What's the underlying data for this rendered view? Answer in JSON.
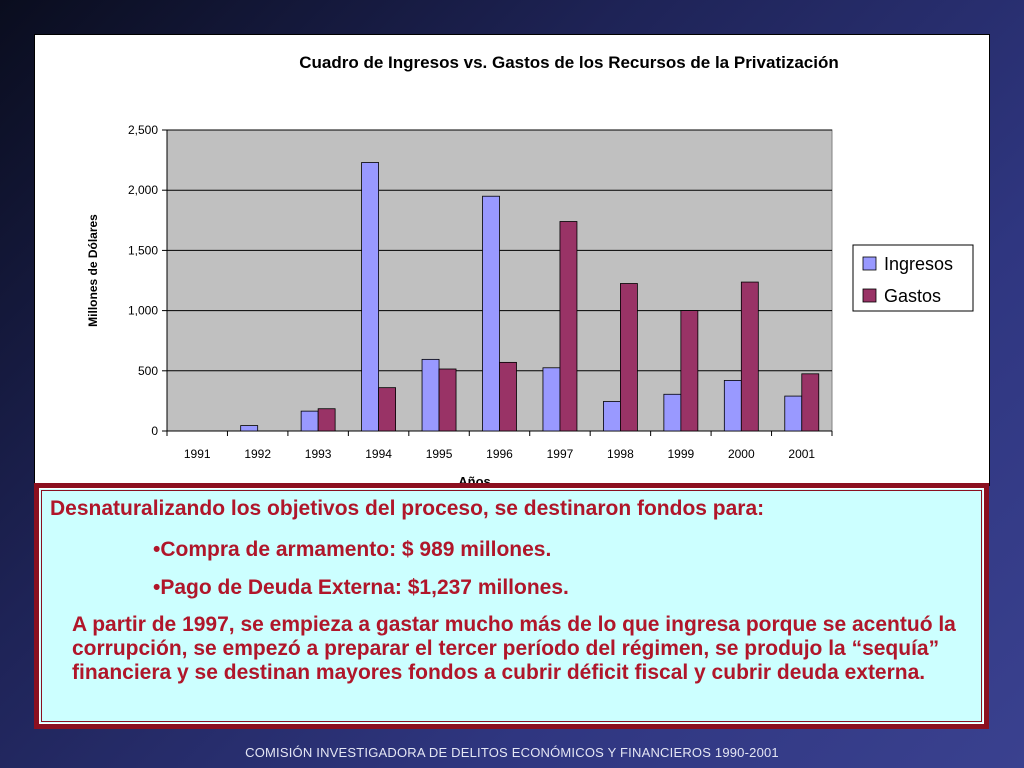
{
  "chart_data": {
    "type": "bar",
    "title": "Cuadro de Ingresos vs. Gastos de los Recursos de la Privatización",
    "xlabel": "Años",
    "ylabel": "Millones de Dólares",
    "categories": [
      "1991",
      "1992",
      "1993",
      "1994",
      "1995",
      "1996",
      "1997",
      "1998",
      "1999",
      "2000",
      "2001"
    ],
    "series": [
      {
        "name": "Ingresos",
        "color": "#9999ff",
        "values": [
          0,
          45,
          165,
          2230,
          595,
          1950,
          525,
          245,
          305,
          420,
          290
        ]
      },
      {
        "name": "Gastos",
        "color": "#993366",
        "values": [
          0,
          0,
          185,
          360,
          515,
          570,
          1740,
          1225,
          1000,
          1237,
          475
        ]
      }
    ],
    "ylim": [
      0,
      2500
    ],
    "yticks": [
      0,
      500,
      1000,
      1500,
      2000,
      2500
    ],
    "ytick_labels": [
      "0",
      "500",
      "1,000",
      "1,500",
      "2,000",
      "2,500"
    ],
    "grid": true,
    "legend_position": "right",
    "plot_background": "#c0c0c0"
  },
  "note": {
    "heading": "Desnaturalizando los objetivos del proceso, se destinaron fondos para:",
    "bullets": [
      "•Compra de armamento: $ 989 millones.",
      "•Pago de Deuda Externa: $1,237 millones."
    ],
    "paragraph": "A partir de 1997, se empieza a gastar mucho más de lo que ingresa porque se acentuó la corrupción, se empezó a preparar el tercer período del régimen, se produjo la “sequía” financiera y se destinan mayores fondos a cubrir déficit fiscal y cubrir deuda externa."
  },
  "footer": "COMISIÓN INVESTIGADORA DE DELITOS ECONÓMICOS Y FINANCIEROS  1990-2001"
}
